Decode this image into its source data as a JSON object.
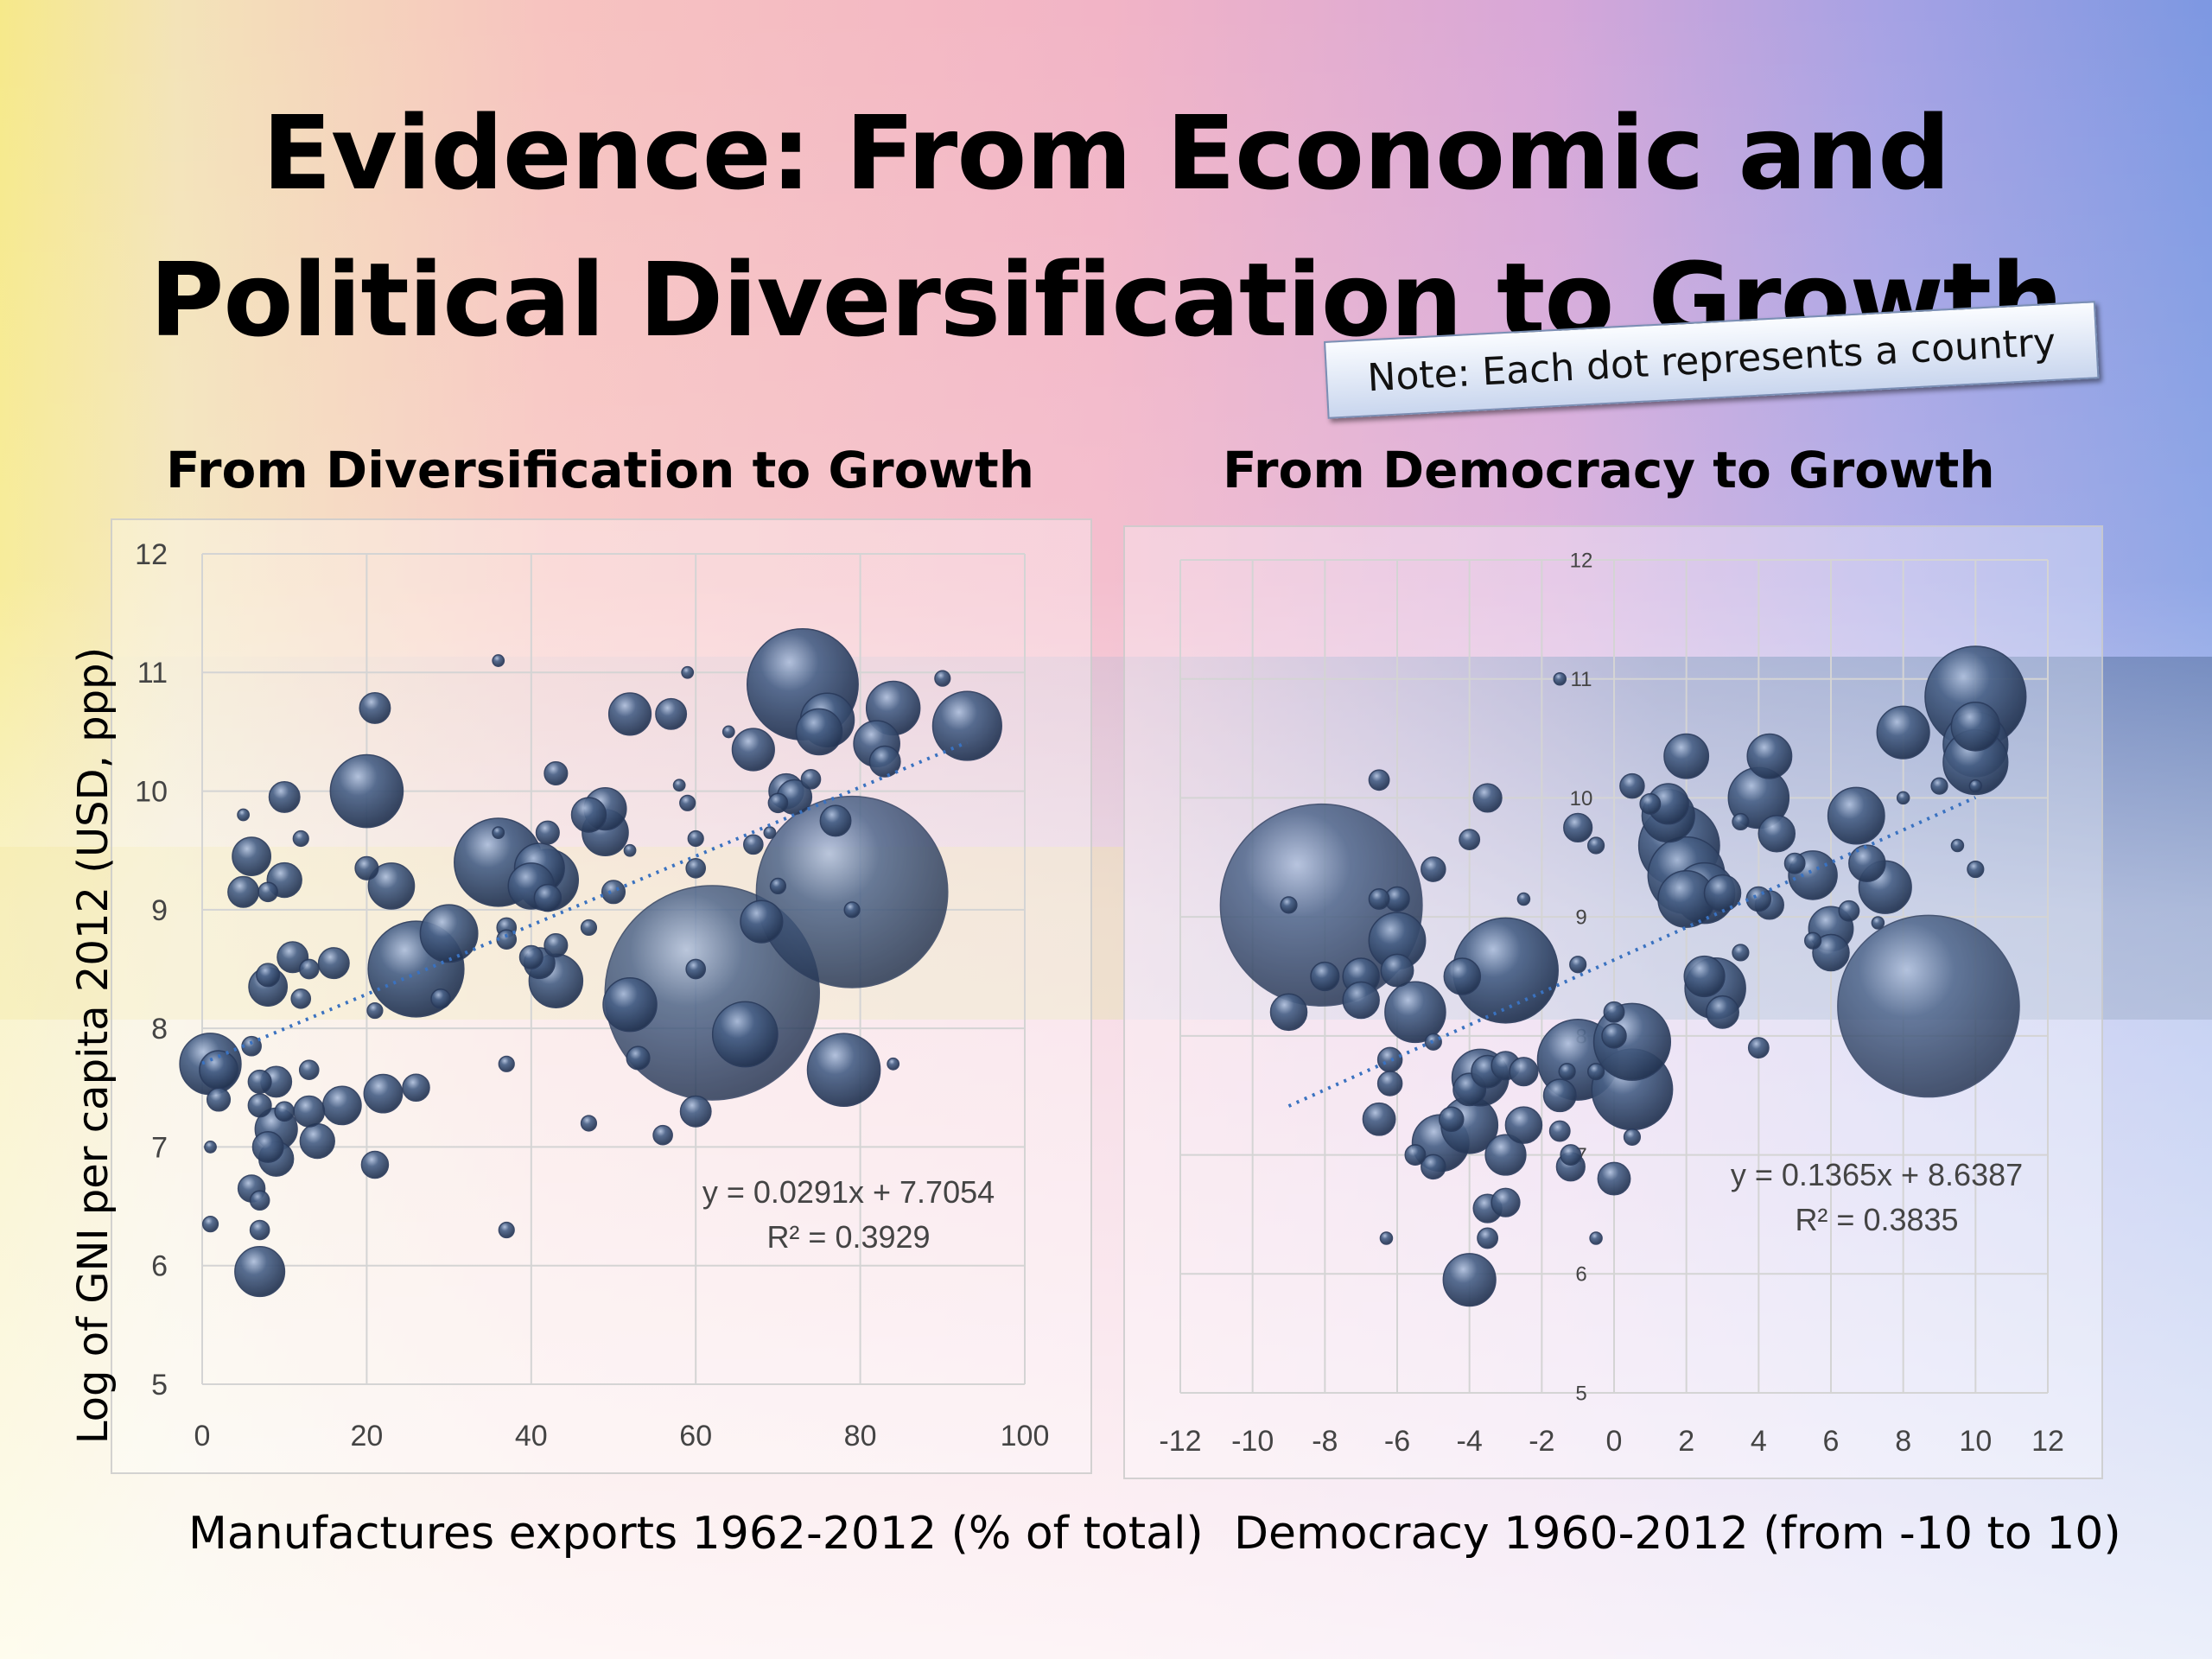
{
  "title_line1": "Evidence: From Economic and",
  "title_line2": "Political Diversification to Growth",
  "note": "Note: Each dot represents a country",
  "y_axis_label": "Log of GNI per capita 2012 (USD, ppp)",
  "colors": {
    "bubble": "#4a6288",
    "trendline": "#3a72c0",
    "grid": "#d4d4d4"
  },
  "chart_data": [
    {
      "type": "scatter",
      "title": "From Diversification to Growth",
      "xlabel": "Manufactures exports 1962-2012  (% of total)",
      "ylabel": "Log of GNI per capita 2012 (USD, ppp)",
      "xlim": [
        0,
        100
      ],
      "ylim": [
        5,
        12
      ],
      "xticks": [
        "0",
        "20",
        "40",
        "60",
        "80",
        "100"
      ],
      "yticks": [
        "5",
        "6",
        "7",
        "8",
        "9",
        "10",
        "11",
        "12"
      ],
      "grid": true,
      "bubble_sizes": "population (relative)",
      "trendline": {
        "slope": 0.0291,
        "intercept": 7.7054,
        "equation": "y = 0.0291x + 7.7054",
        "r2": "R² = 0.3929"
      },
      "points": [
        [
          1,
          7.7,
          1.6
        ],
        [
          2,
          7.65,
          1
        ],
        [
          2,
          7.4,
          0.6
        ],
        [
          1,
          7.0,
          0.3
        ],
        [
          1,
          6.35,
          0.4
        ],
        [
          5,
          9.8,
          0.3
        ],
        [
          6,
          9.45,
          1
        ],
        [
          5,
          9.15,
          0.8
        ],
        [
          8,
          9.15,
          0.5
        ],
        [
          10,
          9.25,
          0.9
        ],
        [
          10,
          9.95,
          0.8
        ],
        [
          12,
          9.6,
          0.4
        ],
        [
          11,
          8.6,
          0.8
        ],
        [
          13,
          8.5,
          0.5
        ],
        [
          12,
          8.25,
          0.5
        ],
        [
          16,
          8.55,
          0.8
        ],
        [
          8,
          8.35,
          1
        ],
        [
          8,
          8.45,
          0.6
        ],
        [
          6,
          7.85,
          0.5
        ],
        [
          7,
          7.55,
          0.6
        ],
        [
          7,
          7.35,
          0.6
        ],
        [
          9,
          7.55,
          0.8
        ],
        [
          10,
          7.3,
          0.5
        ],
        [
          9,
          7.15,
          1.1
        ],
        [
          8,
          7.0,
          0.8
        ],
        [
          9,
          6.9,
          0.9
        ],
        [
          13,
          7.3,
          0.8
        ],
        [
          13,
          7.65,
          0.5
        ],
        [
          14,
          7.05,
          0.9
        ],
        [
          17,
          7.35,
          1
        ],
        [
          6,
          6.65,
          0.7
        ],
        [
          7,
          6.55,
          0.5
        ],
        [
          7,
          6.3,
          0.5
        ],
        [
          7,
          5.95,
          1.3
        ],
        [
          20,
          9.35,
          0.6
        ],
        [
          20,
          10.0,
          1.9
        ],
        [
          21,
          10.7,
          0.8
        ],
        [
          23,
          9.2,
          1.2
        ],
        [
          21,
          8.15,
          0.4
        ],
        [
          22,
          7.45,
          1
        ],
        [
          21,
          6.85,
          0.7
        ],
        [
          26,
          7.5,
          0.7
        ],
        [
          26,
          8.5,
          2.5
        ],
        [
          29,
          8.25,
          0.5
        ],
        [
          30,
          8.8,
          1.5
        ],
        [
          36,
          11.1,
          0.3
        ],
        [
          37,
          7.7,
          0.4
        ],
        [
          37,
          6.3,
          0.4
        ],
        [
          37,
          8.85,
          0.5
        ],
        [
          36,
          9.65,
          0.3
        ],
        [
          37,
          8.75,
          0.5
        ],
        [
          36,
          9.4,
          2.3
        ],
        [
          40,
          9.2,
          1.2
        ],
        [
          41,
          9.35,
          1.3
        ],
        [
          42,
          9.65,
          0.6
        ],
        [
          43,
          10.15,
          0.6
        ],
        [
          43,
          8.7,
          0.6
        ],
        [
          42,
          9.25,
          1.6
        ],
        [
          42,
          9.1,
          0.7
        ],
        [
          41,
          8.55,
          0.8
        ],
        [
          40,
          8.6,
          0.6
        ],
        [
          43,
          8.4,
          1.4
        ],
        [
          47,
          9.8,
          0.9
        ],
        [
          49,
          9.65,
          1.2
        ],
        [
          49,
          9.85,
          1.1
        ],
        [
          47,
          8.85,
          0.4
        ],
        [
          47,
          7.2,
          0.4
        ],
        [
          50,
          9.15,
          0.6
        ],
        [
          52,
          10.65,
          1.1
        ],
        [
          52,
          9.5,
          0.3
        ],
        [
          53,
          7.75,
          0.6
        ],
        [
          52,
          8.2,
          1.4
        ],
        [
          56,
          7.1,
          0.5
        ],
        [
          57,
          10.65,
          0.8
        ],
        [
          58,
          10.05,
          0.3
        ],
        [
          59,
          11.0,
          0.3
        ],
        [
          60,
          9.6,
          0.4
        ],
        [
          59,
          9.9,
          0.4
        ],
        [
          60,
          9.35,
          0.5
        ],
        [
          60,
          8.5,
          0.5
        ],
        [
          62,
          8.3,
          5.6
        ],
        [
          60,
          7.3,
          0.8
        ],
        [
          64,
          10.5,
          0.3
        ],
        [
          66,
          7.95,
          1.7
        ],
        [
          67,
          10.35,
          1.1
        ],
        [
          67,
          9.55,
          0.5
        ],
        [
          68,
          8.9,
          1.1
        ],
        [
          69,
          9.65,
          0.3
        ],
        [
          70,
          9.9,
          0.5
        ],
        [
          71,
          10.0,
          0.9
        ],
        [
          70,
          9.2,
          0.4
        ],
        [
          72,
          9.95,
          0.9
        ],
        [
          73,
          10.9,
          2.9
        ],
        [
          74,
          10.1,
          0.5
        ],
        [
          75,
          10.5,
          1.2
        ],
        [
          76,
          10.6,
          1.4
        ],
        [
          77,
          9.75,
          0.8
        ],
        [
          78,
          7.65,
          1.9
        ],
        [
          79,
          9.0,
          0.4
        ],
        [
          79,
          9.15,
          5.0
        ],
        [
          82,
          10.4,
          1.2
        ],
        [
          83,
          10.25,
          0.8
        ],
        [
          84,
          10.7,
          1.4
        ],
        [
          84,
          7.7,
          0.3
        ],
        [
          90,
          10.95,
          0.4
        ],
        [
          93,
          10.55,
          1.8
        ]
      ]
    },
    {
      "type": "scatter",
      "title": "From Democracy to Growth",
      "xlabel": "Democracy 1960-2012 (from -10 to 10)",
      "ylabel": "",
      "xlim": [
        -12,
        12
      ],
      "ylim": [
        5,
        12
      ],
      "xticks": [
        "-12",
        "-10",
        "-8",
        "-6",
        "-4",
        "-2",
        "0",
        "2",
        "4",
        "6",
        "8",
        "10",
        "12"
      ],
      "yticks": [
        "5",
        "6",
        "7",
        "8",
        "9",
        "10",
        "11",
        "12"
      ],
      "grid": true,
      "bubble_sizes": "population (relative)",
      "trendline": {
        "slope": 0.1365,
        "intercept": 8.6387,
        "equation": "y = 0.1365x + 8.6387",
        "r2": "R² = 0.3835"
      },
      "points": [
        [
          -8.1,
          9.1,
          5.0
        ],
        [
          -9,
          8.2,
          0.9
        ],
        [
          -9,
          9.1,
          0.4
        ],
        [
          -8,
          8.5,
          0.7
        ],
        [
          -7,
          8.5,
          0.9
        ],
        [
          -7,
          8.3,
          0.9
        ],
        [
          -6.5,
          10.15,
          0.5
        ],
        [
          -6.5,
          9.15,
          0.5
        ],
        [
          -6,
          9.15,
          0.6
        ],
        [
          -6,
          8.8,
          1.4
        ],
        [
          -6,
          8.55,
          0.8
        ],
        [
          -5.5,
          8.2,
          1.5
        ],
        [
          -6.2,
          7.8,
          0.6
        ],
        [
          -6.2,
          7.6,
          0.6
        ],
        [
          -6.5,
          7.3,
          0.8
        ],
        [
          -6.3,
          6.3,
          0.3
        ],
        [
          -5.5,
          7.0,
          0.5
        ],
        [
          -5,
          9.4,
          0.6
        ],
        [
          -5,
          7.95,
          0.4
        ],
        [
          -5,
          6.9,
          0.6
        ],
        [
          -4.8,
          7.1,
          1.4
        ],
        [
          -4.5,
          7.3,
          0.6
        ],
        [
          -4,
          7.25,
          1.4
        ],
        [
          -4,
          7.55,
          0.8
        ],
        [
          -3.7,
          7.65,
          1.4
        ],
        [
          -4.2,
          8.5,
          0.9
        ],
        [
          -3,
          8.55,
          2.6
        ],
        [
          -4,
          9.65,
          0.5
        ],
        [
          -3.5,
          10.0,
          0.7
        ],
        [
          -3,
          7.75,
          0.7
        ],
        [
          -3.5,
          7.7,
          0.8
        ],
        [
          -3,
          7.0,
          1.0
        ],
        [
          -2.5,
          7.25,
          0.9
        ],
        [
          -3.5,
          6.55,
          0.7
        ],
        [
          -3.5,
          6.3,
          0.5
        ],
        [
          -3,
          6.6,
          0.7
        ],
        [
          -4,
          5.95,
          1.3
        ],
        [
          -2.5,
          7.7,
          0.7
        ],
        [
          -1.5,
          7.5,
          0.8
        ],
        [
          -1.5,
          7.2,
          0.5
        ],
        [
          -1.2,
          7.0,
          0.5
        ],
        [
          -1.2,
          6.9,
          0.7
        ],
        [
          -1.3,
          7.7,
          0.4
        ],
        [
          -1,
          7.8,
          2.0
        ],
        [
          -1,
          8.6,
          0.4
        ],
        [
          -2.5,
          9.15,
          0.3
        ],
        [
          -1,
          9.75,
          0.7
        ],
        [
          -0.5,
          9.6,
          0.4
        ],
        [
          0,
          8.2,
          0.5
        ],
        [
          0,
          8.0,
          0.6
        ],
        [
          0.5,
          7.55,
          2.0
        ],
        [
          0.5,
          7.95,
          1.9
        ],
        [
          0.5,
          7.15,
          0.4
        ],
        [
          0,
          6.8,
          0.8
        ],
        [
          -0.5,
          6.3,
          0.3
        ],
        [
          -0.5,
          7.7,
          0.4
        ],
        [
          -1.5,
          11.0,
          0.3
        ],
        [
          0.5,
          10.1,
          0.6
        ],
        [
          1,
          9.95,
          0.5
        ],
        [
          1.5,
          9.95,
          1.0
        ],
        [
          2,
          10.35,
          1.1
        ],
        [
          1.5,
          9.85,
          1.3
        ],
        [
          1.8,
          9.6,
          2.0
        ],
        [
          2,
          9.35,
          1.9
        ],
        [
          2,
          9.15,
          1.4
        ],
        [
          2.5,
          9.2,
          1.5
        ],
        [
          3,
          9.2,
          0.9
        ],
        [
          2.5,
          8.5,
          1.0
        ],
        [
          2.8,
          8.4,
          1.5
        ],
        [
          3,
          8.2,
          0.8
        ],
        [
          3.5,
          8.7,
          0.4
        ],
        [
          4,
          9.15,
          0.6
        ],
        [
          4.3,
          9.1,
          0.7
        ],
        [
          3.5,
          9.8,
          0.4
        ],
        [
          4,
          10.0,
          1.5
        ],
        [
          4.3,
          10.35,
          1.1
        ],
        [
          4.5,
          9.7,
          0.9
        ],
        [
          4,
          7.9,
          0.5
        ],
        [
          5,
          9.45,
          0.5
        ],
        [
          5.5,
          9.35,
          1.2
        ],
        [
          5.5,
          8.8,
          0.4
        ],
        [
          6,
          8.9,
          1.1
        ],
        [
          6,
          8.7,
          0.9
        ],
        [
          6.7,
          9.85,
          1.4
        ],
        [
          7,
          9.45,
          0.9
        ],
        [
          7.5,
          9.25,
          1.3
        ],
        [
          6.5,
          9.05,
          0.5
        ],
        [
          7.3,
          8.95,
          0.3
        ],
        [
          8,
          10.55,
          1.3
        ],
        [
          8,
          10.0,
          0.3
        ],
        [
          8.7,
          8.25,
          4.5
        ],
        [
          9,
          10.1,
          0.4
        ],
        [
          9.5,
          9.6,
          0.3
        ],
        [
          10,
          10.45,
          1.6
        ],
        [
          10,
          10.3,
          1.6
        ],
        [
          10,
          10.85,
          2.5
        ],
        [
          10,
          10.6,
          1.2
        ],
        [
          10,
          10.1,
          0.3
        ],
        [
          10,
          9.4,
          0.4
        ]
      ]
    }
  ]
}
